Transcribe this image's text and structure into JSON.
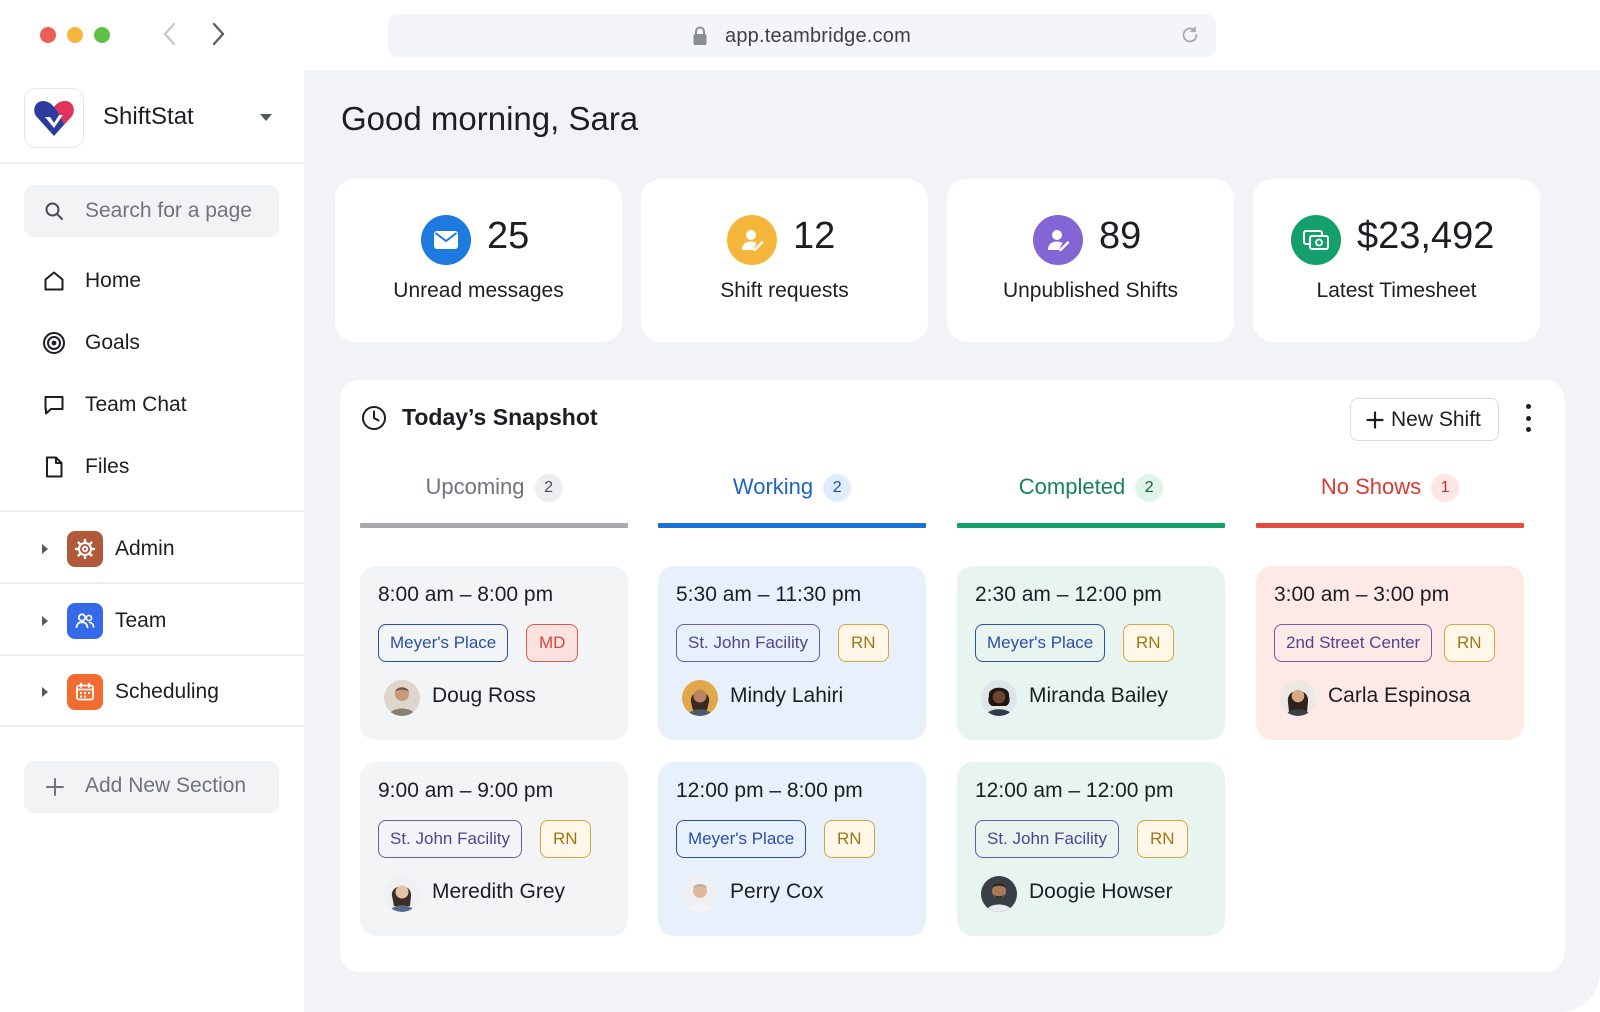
{
  "browser": {
    "url": "app.teambridge.com",
    "traffic_colors": [
      "#ee5d55",
      "#f4b63c",
      "#5ec144"
    ]
  },
  "sidebar": {
    "brand_name": "ShiftStat",
    "search_placeholder": "Search for a page",
    "nav": [
      {
        "label": "Home",
        "icon": "home-icon"
      },
      {
        "label": "Goals",
        "icon": "target-icon"
      },
      {
        "label": "Team Chat",
        "icon": "chat-icon"
      },
      {
        "label": "Files",
        "icon": "file-icon"
      }
    ],
    "sections": [
      {
        "label": "Admin",
        "icon": "gear-icon",
        "color": "#b05a3a"
      },
      {
        "label": "Team",
        "icon": "people-icon",
        "color": "#3569e8"
      },
      {
        "label": "Scheduling",
        "icon": "calendar-icon",
        "color": "#f26b31"
      }
    ],
    "add_section_label": "Add New Section"
  },
  "main": {
    "greeting": "Good morning, Sara",
    "stats": [
      {
        "value": "25",
        "label": "Unread messages",
        "icon": "mail-icon",
        "color": "#1f7ae0"
      },
      {
        "value": "12",
        "label": "Shift requests",
        "icon": "user-request-icon",
        "color": "#f5b73b"
      },
      {
        "value": "89",
        "label": "Unpublished Shifts",
        "icon": "user-edit-icon",
        "color": "#8465d6"
      },
      {
        "value": "$23,492",
        "label": "Latest Timesheet",
        "icon": "money-icon",
        "color": "#14a06a"
      }
    ],
    "snapshot": {
      "title": "Today’s Snapshot",
      "new_shift_label": "New Shift",
      "columns": [
        {
          "label": "Upcoming",
          "count": "2",
          "label_color": "#6f747c",
          "bar_color": "#a7a9ad",
          "count_bg": "#eceef1",
          "count_color": "#4b5058",
          "card_bg": "#f3f4f6",
          "shifts": [
            {
              "time": "8:00 am – 8:00 pm",
              "location": "Meyer's Place",
              "role": "MD",
              "person": "Doug Ross"
            },
            {
              "time": "9:00 am – 9:00 pm",
              "location": "St. John Facility",
              "role": "RN",
              "person": "Meredith Grey"
            }
          ]
        },
        {
          "label": "Working",
          "count": "2",
          "label_color": "#1c64c8",
          "bar_color": "#1c6fd6",
          "count_bg": "#e0ecfb",
          "count_color": "#1c4f9c",
          "card_bg": "#e7f0fb",
          "shifts": [
            {
              "time": "5:30 am – 11:30 pm",
              "location": "St. John Facility",
              "role": "RN",
              "person": "Mindy Lahiri"
            },
            {
              "time": "12:00 pm – 8:00 pm",
              "location": "Meyer's Place",
              "role": "RN",
              "person": "Perry Cox"
            }
          ]
        },
        {
          "label": "Completed",
          "count": "2",
          "label_color": "#14855a",
          "bar_color": "#14a06a",
          "count_bg": "#dff3e9",
          "count_color": "#14603f",
          "card_bg": "#e7f4ef",
          "shifts": [
            {
              "time": "2:30 am – 12:00 pm",
              "location": "Meyer's Place",
              "role": "RN",
              "person": "Miranda Bailey"
            },
            {
              "time": "12:00 am – 12:00 pm",
              "location": "St. John Facility",
              "role": "RN",
              "person": "Doogie Howser"
            }
          ]
        },
        {
          "label": "No Shows",
          "count": "1",
          "label_color": "#d93a31",
          "bar_color": "#e44a3d",
          "count_bg": "#fde6e3",
          "count_color": "#c3302a",
          "card_bg": "#fdeae7",
          "shifts": [
            {
              "time": "3:00 am – 3:00 pm",
              "location": "2nd Street Center",
              "role": "RN",
              "person": "Carla Espinosa"
            }
          ]
        }
      ]
    }
  }
}
